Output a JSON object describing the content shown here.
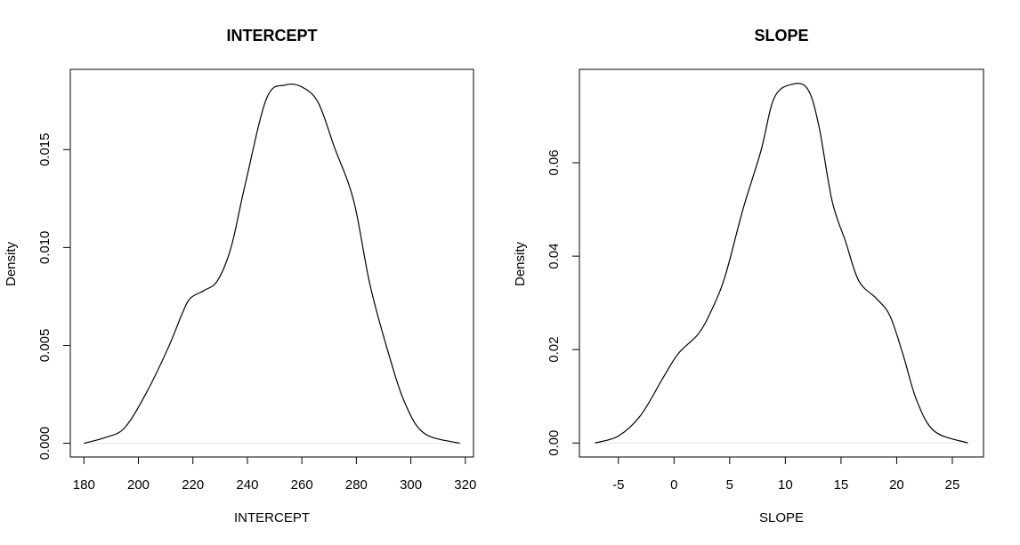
{
  "chart_data": [
    {
      "type": "line",
      "title": "INTERCEPT",
      "xlabel": "INTERCEPT",
      "ylabel": "Density",
      "xticks": [
        "180",
        "200",
        "220",
        "240",
        "260",
        "280",
        "300",
        "320"
      ],
      "yticks": [
        "0.000",
        "0.005",
        "0.010",
        "0.015"
      ],
      "xlim": [
        175,
        323
      ],
      "ylim": [
        -0.0007,
        0.0191
      ],
      "grid": false,
      "legend": null,
      "series": [
        {
          "name": "density",
          "x": [
            180,
            188,
            195,
            203,
            211,
            216,
            219,
            224,
            229,
            234,
            239,
            247,
            254,
            260,
            266,
            272,
            279,
            285,
            292,
            298,
            305,
            318
          ],
          "y": [
            0.0,
            0.0003,
            0.0008,
            0.0026,
            0.0049,
            0.0066,
            0.0074,
            0.0078,
            0.0083,
            0.01,
            0.0131,
            0.0176,
            0.0183,
            0.0182,
            0.0174,
            0.0151,
            0.0124,
            0.0081,
            0.0045,
            0.002,
            0.0005,
            0.0
          ]
        }
      ]
    },
    {
      "type": "line",
      "title": "SLOPE",
      "xlabel": "SLOPE",
      "ylabel": "Density",
      "xticks": [
        "-5",
        "0",
        "5",
        "10",
        "15",
        "20",
        "25"
      ],
      "yticks": [
        "0.00",
        "0.02",
        "0.04",
        "0.06"
      ],
      "xlim": [
        -8.5,
        27.8
      ],
      "ylim": [
        -0.003,
        0.08
      ],
      "grid": false,
      "legend": null,
      "series": [
        {
          "name": "density",
          "x": [
            -7.1,
            -5.0,
            -3.0,
            -1.0,
            0.4,
            2.2,
            3.4,
            4.6,
            6.2,
            7.8,
            9.0,
            10.6,
            12.0,
            13.0,
            14.2,
            15.4,
            16.6,
            18.2,
            19.4,
            20.6,
            21.8,
            23.4,
            26.4
          ],
          "y": [
            0.0,
            0.0015,
            0.0059,
            0.0139,
            0.0192,
            0.0234,
            0.0286,
            0.0358,
            0.0501,
            0.0625,
            0.0739,
            0.0768,
            0.0758,
            0.068,
            0.0518,
            0.0432,
            0.0347,
            0.0309,
            0.0272,
            0.0187,
            0.0091,
            0.0025,
            0.0
          ]
        }
      ]
    }
  ]
}
